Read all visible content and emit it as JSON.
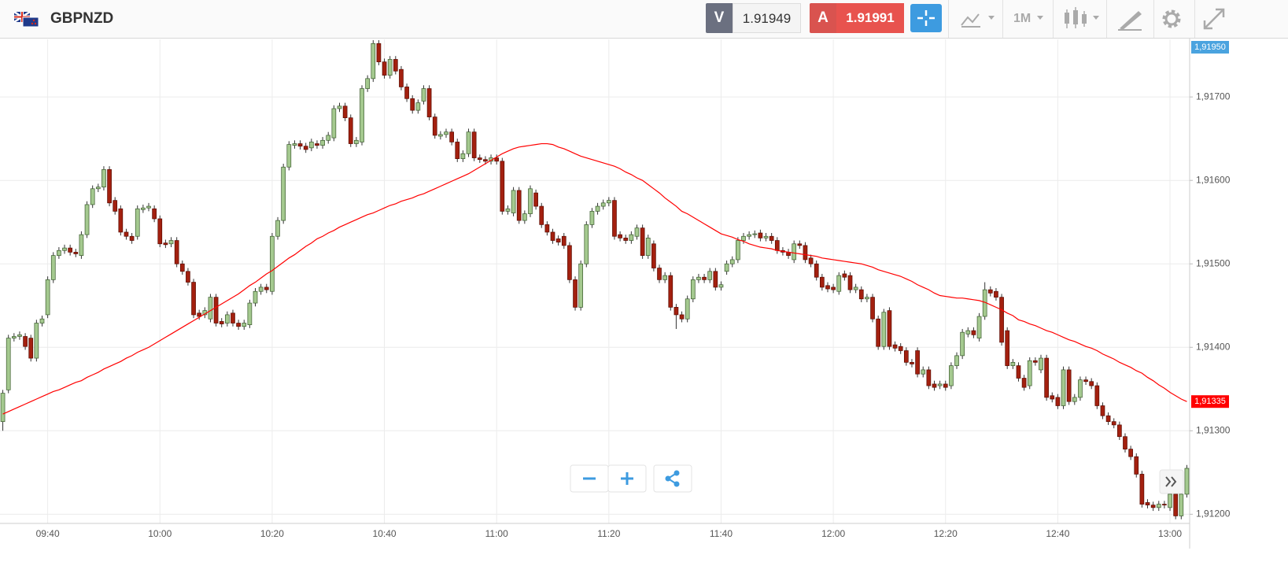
{
  "header": {
    "symbol": "GBPNZD",
    "bid_tag": "V",
    "bid": 1.91949,
    "ask_tag": "A",
    "ask": 1.91991,
    "timeframe": "1M",
    "top_price_tag": "1,91950"
  },
  "chart_data": {
    "type": "candlestick",
    "up_color": "#a4c98f",
    "down_color": "#a3200f",
    "grid": true,
    "ylim": [
      1.91189,
      1.91769
    ],
    "yticks": [
      {
        "value": 1.912,
        "label": "1,91200"
      },
      {
        "value": 1.913,
        "label": "1,91300"
      },
      {
        "value": 1.914,
        "label": "1,91400"
      },
      {
        "value": 1.915,
        "label": "1,91500"
      },
      {
        "value": 1.916,
        "label": "1,91600"
      },
      {
        "value": 1.917,
        "label": "1,91700"
      }
    ],
    "categories": [
      null,
      null,
      null,
      null,
      null,
      null,
      null,
      null,
      "09:40",
      null,
      null,
      null,
      null,
      null,
      null,
      null,
      null,
      null,
      null,
      null,
      null,
      null,
      null,
      null,
      null,
      null,
      null,
      null,
      "10:00",
      null,
      null,
      null,
      null,
      null,
      null,
      null,
      null,
      null,
      null,
      null,
      null,
      null,
      null,
      null,
      null,
      null,
      null,
      null,
      "10:20",
      null,
      null,
      null,
      null,
      null,
      null,
      null,
      null,
      null,
      null,
      null,
      null,
      null,
      null,
      null,
      null,
      null,
      null,
      null,
      "10:40",
      null,
      null,
      null,
      null,
      null,
      null,
      null,
      null,
      null,
      null,
      null,
      null,
      null,
      null,
      null,
      null,
      null,
      null,
      null,
      "11:00",
      null,
      null,
      null,
      null,
      null,
      null,
      null,
      null,
      null,
      null,
      null,
      null,
      null,
      null,
      null,
      null,
      null,
      null,
      null,
      "11:20",
      null,
      null,
      null,
      null,
      null,
      null,
      null,
      null,
      null,
      null,
      null,
      null,
      null,
      null,
      null,
      null,
      null,
      null,
      null,
      "11:40",
      null,
      null,
      null,
      null,
      null,
      null,
      null,
      null,
      null,
      null,
      null,
      null,
      null,
      null,
      null,
      null,
      null,
      null,
      null,
      "12:00",
      null,
      null,
      null,
      null,
      null,
      null,
      null,
      null,
      null,
      null,
      null,
      null,
      null,
      null,
      null,
      null,
      null,
      null,
      null,
      "12:20",
      null,
      null,
      null,
      null,
      null,
      null,
      null,
      null,
      null,
      null,
      null,
      null,
      null,
      null,
      null,
      null,
      null,
      null,
      null,
      "12:40",
      null,
      null,
      null,
      null,
      null,
      null,
      null,
      null,
      null,
      null,
      null,
      null,
      null,
      null,
      null,
      null,
      null,
      null,
      null,
      "13:00",
      null,
      null,
      null
    ],
    "open": [
      1.91311,
      1.91349,
      1.91411,
      1.91413,
      1.91413,
      1.91411,
      1.91387,
      1.91429,
      1.91439,
      1.91481,
      1.9151,
      1.91516,
      1.91519,
      1.91514,
      1.9151,
      1.91535,
      1.91571,
      1.9159,
      1.91592,
      1.91613,
      1.91576,
      1.91566,
      1.91538,
      1.91533,
      1.91533,
      1.91565,
      1.91567,
      1.91566,
      1.91554,
      1.91525,
      1.91524,
      1.91528,
      1.915,
      1.91491,
      1.91478,
      1.91441,
      1.91439,
      1.91434,
      1.9146,
      1.91431,
      1.91429,
      1.91441,
      1.91429,
      1.91425,
      1.91427,
      1.91453,
      1.91467,
      1.91472,
      1.91467,
      1.91533,
      1.91552,
      1.91616,
      1.91642,
      1.91644,
      1.91641,
      1.91639,
      1.91644,
      1.91642,
      1.91648,
      1.91651,
      1.91686,
      1.91689,
      1.91675,
      1.91644,
      1.91646,
      1.9171,
      1.91722,
      1.91764,
      1.91742,
      1.91726,
      1.91745,
      1.91733,
      1.91712,
      1.91698,
      1.91684,
      1.91695,
      1.9171,
      1.91676,
      1.91653,
      1.91655,
      1.91658,
      1.91646,
      1.91626,
      1.91632,
      1.91658,
      1.91627,
      1.91625,
      1.91623,
      1.91627,
      1.91623,
      1.91563,
      1.91561,
      1.91588,
      1.91552,
      1.9156,
      1.91585,
      1.91569,
      1.91547,
      1.91538,
      1.9153,
      1.91533,
      1.91522,
      1.91481,
      1.91448,
      1.915,
      1.91547,
      1.91563,
      1.91569,
      1.91573,
      1.91576,
      1.91535,
      1.91531,
      1.91528,
      1.91533,
      1.91543,
      1.9151,
      1.91524,
      1.91495,
      1.91481,
      1.91486,
      1.91448,
      1.91439,
      1.91434,
      1.91458,
      1.91481,
      1.91484,
      1.91481,
      1.91491,
      1.91472,
      1.91491,
      1.915,
      1.91505,
      1.91528,
      1.91533,
      1.91535,
      1.91537,
      1.91531,
      1.91533,
      1.91528,
      1.91516,
      1.91514,
      1.91505,
      1.91524,
      1.91522,
      1.91507,
      1.915,
      1.91484,
      1.91474,
      1.91472,
      1.91467,
      1.91488,
      1.91486,
      1.91469,
      1.91469,
      1.91458,
      1.9146,
      1.91434,
      1.91401,
      1.91444,
      1.91403,
      1.91401,
      1.91396,
      1.91382,
      1.91396,
      1.91368,
      1.91373,
      1.91356,
      1.91354,
      1.91356,
      1.91354,
      1.91378,
      1.9139,
      1.91416,
      1.9142,
      1.91411,
      1.91437,
      1.91469,
      1.91467,
      1.9146,
      1.9142,
      1.91378,
      1.91378,
      1.91363,
      1.91354,
      1.91384,
      1.91373,
      1.91387,
      1.91342,
      1.9134,
      1.9133,
      1.91373,
      1.91335,
      1.9134,
      1.91361,
      1.91359,
      1.91354,
      1.9133,
      1.91318,
      1.91311,
      1.91307,
      1.91293,
      1.91278,
      1.91269,
      1.91248,
      1.91214,
      1.91211,
      1.91208,
      1.91212,
      1.91208,
      1.91224,
      1.91198,
      1.91224
    ],
    "high": [
      1.91349,
      1.91415,
      1.91417,
      1.91419,
      1.91417,
      1.91415,
      1.91433,
      1.91438,
      1.91485,
      1.91514,
      1.9152,
      1.91523,
      1.91523,
      1.91518,
      1.91539,
      1.91575,
      1.91594,
      1.91596,
      1.91617,
      1.91617,
      1.9158,
      1.9157,
      1.91542,
      1.91537,
      1.9157,
      1.91571,
      1.91573,
      1.9157,
      1.91558,
      1.91529,
      1.91532,
      1.91532,
      1.91504,
      1.91495,
      1.91482,
      1.91445,
      1.91448,
      1.91464,
      1.91464,
      1.91435,
      1.91443,
      1.91445,
      1.91433,
      1.91433,
      1.91457,
      1.91471,
      1.91476,
      1.91476,
      1.91537,
      1.91556,
      1.9162,
      1.91647,
      1.91648,
      1.91648,
      1.91645,
      1.9165,
      1.91648,
      1.91652,
      1.91658,
      1.9169,
      1.91693,
      1.91693,
      1.91679,
      1.91652,
      1.91714,
      1.91726,
      1.91768,
      1.91768,
      1.91746,
      1.91749,
      1.91749,
      1.91737,
      1.91716,
      1.91702,
      1.91697,
      1.91714,
      1.91714,
      1.9168,
      1.91659,
      1.91662,
      1.91662,
      1.9165,
      1.91636,
      1.91662,
      1.91662,
      1.91631,
      1.91629,
      1.91631,
      1.91631,
      1.91627,
      1.9157,
      1.91592,
      1.91592,
      1.91564,
      1.91594,
      1.91589,
      1.91573,
      1.91551,
      1.91542,
      1.91534,
      1.91537,
      1.91526,
      1.91485,
      1.91504,
      1.91551,
      1.91567,
      1.91573,
      1.91577,
      1.9158,
      1.9158,
      1.91539,
      1.91535,
      1.91539,
      1.91547,
      1.91547,
      1.91535,
      1.91528,
      1.91499,
      1.9149,
      1.9149,
      1.91452,
      1.91443,
      1.91462,
      1.91485,
      1.91488,
      1.91488,
      1.91495,
      1.91495,
      1.91479,
      1.91504,
      1.91509,
      1.91532,
      1.91537,
      1.91539,
      1.9154,
      1.91541,
      1.91537,
      1.91537,
      1.91532,
      1.9152,
      1.91518,
      1.91528,
      1.91528,
      1.91526,
      1.91511,
      1.91504,
      1.91488,
      1.91478,
      1.91476,
      1.9149,
      1.91492,
      1.9149,
      1.91476,
      1.91473,
      1.91464,
      1.91464,
      1.91438,
      1.91446,
      1.91448,
      1.91407,
      1.91405,
      1.914,
      1.91386,
      1.914,
      1.91377,
      1.91377,
      1.9136,
      1.9136,
      1.9136,
      1.91382,
      1.91394,
      1.91422,
      1.91424,
      1.91424,
      1.91441,
      1.91478,
      1.91473,
      1.91471,
      1.91464,
      1.91424,
      1.91386,
      1.91382,
      1.91367,
      1.91388,
      1.91388,
      1.91391,
      1.91391,
      1.91346,
      1.91344,
      1.91377,
      1.91377,
      1.91344,
      1.91365,
      1.91365,
      1.91363,
      1.91358,
      1.91334,
      1.91322,
      1.91315,
      1.91311,
      1.91297,
      1.91282,
      1.91273,
      1.91252,
      1.91218,
      1.91215,
      1.91216,
      1.91216,
      1.91228,
      1.91228,
      1.91228,
      1.91259
    ],
    "low": [
      1.913,
      1.91345,
      1.91407,
      1.91409,
      1.91397,
      1.91383,
      1.91383,
      1.91425,
      1.91435,
      1.91477,
      1.91506,
      1.91512,
      1.9151,
      1.91508,
      1.91506,
      1.91531,
      1.91567,
      1.91586,
      1.91588,
      1.91569,
      1.91559,
      1.91534,
      1.91529,
      1.91524,
      1.91529,
      1.91561,
      1.91563,
      1.9155,
      1.9152,
      1.91519,
      1.9152,
      1.91496,
      1.91487,
      1.91474,
      1.91435,
      1.91433,
      1.91435,
      1.9143,
      1.91425,
      1.91424,
      1.91425,
      1.91425,
      1.91421,
      1.91421,
      1.91423,
      1.91449,
      1.91463,
      1.91465,
      1.91463,
      1.91529,
      1.91548,
      1.91612,
      1.91638,
      1.91637,
      1.91633,
      1.91635,
      1.91638,
      1.91638,
      1.91644,
      1.91647,
      1.91682,
      1.91671,
      1.9164,
      1.9164,
      1.91642,
      1.91706,
      1.91718,
      1.91738,
      1.91722,
      1.91722,
      1.91727,
      1.91708,
      1.91694,
      1.9168,
      1.9168,
      1.91691,
      1.91672,
      1.9165,
      1.91649,
      1.91651,
      1.91642,
      1.91622,
      1.91622,
      1.91628,
      1.91623,
      1.91621,
      1.91619,
      1.91619,
      1.91619,
      1.91559,
      1.91559,
      1.91557,
      1.91548,
      1.91548,
      1.91556,
      1.91565,
      1.91543,
      1.91534,
      1.91524,
      1.91522,
      1.91518,
      1.91477,
      1.91444,
      1.91444,
      1.91496,
      1.91543,
      1.91559,
      1.91565,
      1.91569,
      1.91529,
      1.91527,
      1.91524,
      1.91524,
      1.91529,
      1.91506,
      1.91506,
      1.91491,
      1.91477,
      1.91477,
      1.91444,
      1.91422,
      1.9143,
      1.9143,
      1.91454,
      1.91477,
      1.91477,
      1.91477,
      1.91468,
      1.91468,
      1.91487,
      1.91496,
      1.91501,
      1.91524,
      1.91529,
      1.91531,
      1.91527,
      1.91527,
      1.91524,
      1.91512,
      1.9151,
      1.91506,
      1.91501,
      1.91518,
      1.91501,
      1.91496,
      1.9148,
      1.91468,
      1.91466,
      1.91465,
      1.91463,
      1.9148,
      1.91465,
      1.91465,
      1.91454,
      1.91454,
      1.9143,
      1.91397,
      1.91397,
      1.91397,
      1.91395,
      1.91392,
      1.91378,
      1.91376,
      1.91364,
      1.91364,
      1.9135,
      1.91348,
      1.9135,
      1.91348,
      1.9135,
      1.91374,
      1.91386,
      1.91412,
      1.91411,
      1.91407,
      1.91433,
      1.91461,
      1.91456,
      1.91402,
      1.91374,
      1.91374,
      1.91359,
      1.91348,
      1.9135,
      1.91378,
      1.91369,
      1.91336,
      1.91334,
      1.91326,
      1.91326,
      1.91331,
      1.91331,
      1.91336,
      1.91355,
      1.9135,
      1.91326,
      1.91314,
      1.91307,
      1.91303,
      1.91289,
      1.91274,
      1.91265,
      1.91244,
      1.91208,
      1.91207,
      1.91204,
      1.91204,
      1.91207,
      1.91204,
      1.91194,
      1.91194,
      1.9122
    ],
    "close": [
      1.91345,
      1.91411,
      1.91413,
      1.91415,
      1.91401,
      1.91387,
      1.91429,
      1.91434,
      1.91481,
      1.9151,
      1.91516,
      1.91519,
      1.91514,
      1.91512,
      1.91535,
      1.91571,
      1.9159,
      1.91592,
      1.91613,
      1.91573,
      1.91563,
      1.91538,
      1.91533,
      1.91528,
      1.91566,
      1.91567,
      1.91569,
      1.91554,
      1.91524,
      1.91523,
      1.91528,
      1.915,
      1.91491,
      1.91478,
      1.91439,
      1.91437,
      1.91444,
      1.9146,
      1.91429,
      1.91428,
      1.91439,
      1.91429,
      1.91425,
      1.91429,
      1.91453,
      1.91467,
      1.91472,
      1.91469,
      1.91533,
      1.91552,
      1.91616,
      1.91643,
      1.91644,
      1.91641,
      1.91637,
      1.91646,
      1.91642,
      1.91648,
      1.91654,
      1.91686,
      1.91689,
      1.91675,
      1.91644,
      1.91648,
      1.9171,
      1.91722,
      1.91764,
      1.91742,
      1.91726,
      1.91745,
      1.91731,
      1.91712,
      1.91698,
      1.91684,
      1.91693,
      1.9171,
      1.91676,
      1.91654,
      1.91655,
      1.91658,
      1.91646,
      1.91626,
      1.91632,
      1.91658,
      1.91627,
      1.91625,
      1.91623,
      1.91627,
      1.91623,
      1.91563,
      1.91566,
      1.91588,
      1.91552,
      1.9156,
      1.9159,
      1.91569,
      1.91547,
      1.91538,
      1.91528,
      1.91526,
      1.91522,
      1.91481,
      1.91448,
      1.915,
      1.91547,
      1.91563,
      1.91569,
      1.91573,
      1.91576,
      1.91533,
      1.91531,
      1.91528,
      1.91535,
      1.91543,
      1.9151,
      1.91531,
      1.91495,
      1.91481,
      1.91486,
      1.91448,
      1.91439,
      1.91434,
      1.91458,
      1.91481,
      1.91484,
      1.91481,
      1.91491,
      1.91472,
      1.91475,
      1.915,
      1.91505,
      1.91528,
      1.91533,
      1.91535,
      1.91536,
      1.91531,
      1.91533,
      1.91528,
      1.91516,
      1.91514,
      1.9151,
      1.91524,
      1.91522,
      1.91505,
      1.915,
      1.91484,
      1.91472,
      1.9147,
      1.91469,
      1.91486,
      1.91484,
      1.91469,
      1.91472,
      1.91458,
      1.9146,
      1.91434,
      1.91401,
      1.91442,
      1.91401,
      1.91399,
      1.91396,
      1.91382,
      1.9138,
      1.91368,
      1.91373,
      1.91354,
      1.91352,
      1.91356,
      1.91352,
      1.91378,
      1.9139,
      1.91418,
      1.9142,
      1.91415,
      1.91437,
      1.91469,
      1.91465,
      1.9146,
      1.91406,
      1.91378,
      1.91382,
      1.91363,
      1.91352,
      1.91384,
      1.91382,
      1.91387,
      1.9134,
      1.91338,
      1.9133,
      1.91373,
      1.91335,
      1.9134,
      1.91361,
      1.91359,
      1.91354,
      1.9133,
      1.91318,
      1.91311,
      1.91307,
      1.91293,
      1.91278,
      1.91269,
      1.91248,
      1.91212,
      1.91211,
      1.91208,
      1.91212,
      1.91211,
      1.91224,
      1.91198,
      1.91224,
      1.91255
    ],
    "ma": {
      "color": "#ff0000",
      "value_label": "1,91335",
      "values": [
        1.9132,
        1.91323,
        1.91326,
        1.91329,
        1.91332,
        1.91335,
        1.91338,
        1.91341,
        1.91344,
        1.91347,
        1.91349,
        1.91352,
        1.91355,
        1.91358,
        1.9136,
        1.91364,
        1.91367,
        1.9137,
        1.91374,
        1.91377,
        1.9138,
        1.91383,
        1.91387,
        1.9139,
        1.91394,
        1.91397,
        1.914,
        1.91404,
        1.91408,
        1.91412,
        1.91416,
        1.9142,
        1.91424,
        1.91428,
        1.91432,
        1.91436,
        1.9144,
        1.91444,
        1.91448,
        1.91452,
        1.91456,
        1.9146,
        1.91464,
        1.91469,
        1.91474,
        1.91478,
        1.91483,
        1.91488,
        1.91492,
        1.91497,
        1.91502,
        1.91507,
        1.91511,
        1.91516,
        1.91521,
        1.91525,
        1.9153,
        1.91533,
        1.91537,
        1.9154,
        1.91544,
        1.91547,
        1.9155,
        1.91553,
        1.91556,
        1.91559,
        1.91561,
        1.91564,
        1.91567,
        1.9157,
        1.91572,
        1.91575,
        1.91577,
        1.91579,
        1.91582,
        1.91584,
        1.91587,
        1.9159,
        1.91593,
        1.91596,
        1.91599,
        1.91602,
        1.91605,
        1.91608,
        1.91612,
        1.91616,
        1.9162,
        1.91624,
        1.91628,
        1.91632,
        1.91635,
        1.91638,
        1.9164,
        1.91641,
        1.91642,
        1.91643,
        1.91644,
        1.91644,
        1.91643,
        1.9164,
        1.91638,
        1.91635,
        1.91632,
        1.91629,
        1.91627,
        1.91625,
        1.91623,
        1.91621,
        1.91619,
        1.91617,
        1.91614,
        1.9161,
        1.91607,
        1.91603,
        1.916,
        1.91595,
        1.9159,
        1.91585,
        1.91579,
        1.91574,
        1.91569,
        1.91563,
        1.9156,
        1.91556,
        1.91552,
        1.91548,
        1.91544,
        1.9154,
        1.91536,
        1.91534,
        1.91532,
        1.91529,
        1.91527,
        1.91524,
        1.91522,
        1.9152,
        1.91519,
        1.91518,
        1.91516,
        1.91515,
        1.91514,
        1.91513,
        1.91512,
        1.91511,
        1.9151,
        1.91509,
        1.91507,
        1.91506,
        1.91505,
        1.91504,
        1.91503,
        1.91502,
        1.91501,
        1.915,
        1.91498,
        1.91496,
        1.91493,
        1.91491,
        1.91489,
        1.91487,
        1.91485,
        1.91482,
        1.91479,
        1.91475,
        1.91472,
        1.91469,
        1.91465,
        1.91462,
        1.91461,
        1.9146,
        1.91459,
        1.91459,
        1.91458,
        1.91457,
        1.91456,
        1.91454,
        1.91451,
        1.91448,
        1.91445,
        1.91441,
        1.91438,
        1.91433,
        1.91431,
        1.91428,
        1.91426,
        1.91423,
        1.9142,
        1.91418,
        1.91415,
        1.91412,
        1.91409,
        1.91407,
        1.91404,
        1.91401,
        1.91399,
        1.91396,
        1.91392,
        1.91389,
        1.91386,
        1.91382,
        1.91379,
        1.91376,
        1.91372,
        1.91369,
        1.91364,
        1.9136,
        1.91355,
        1.91351,
        1.91346,
        1.91342,
        1.91338,
        1.91335
      ]
    }
  }
}
